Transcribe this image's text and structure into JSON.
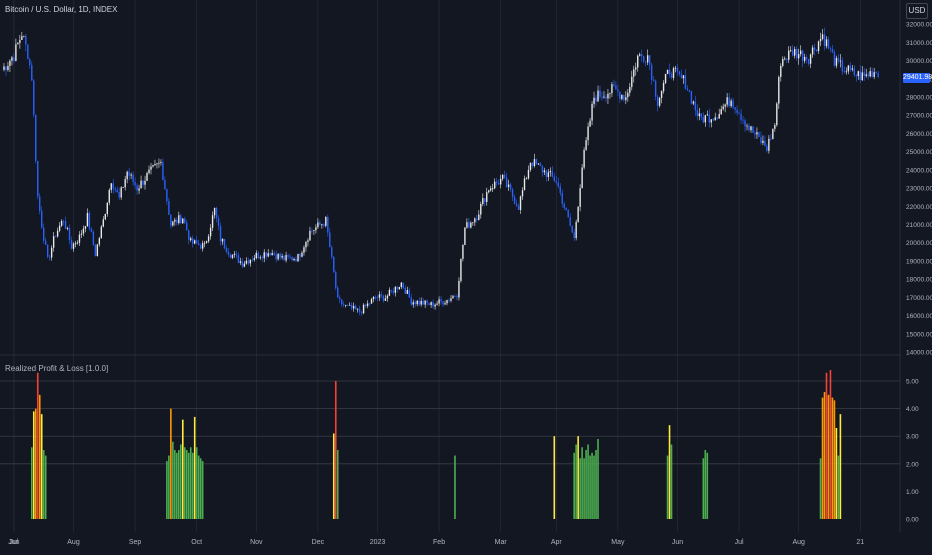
{
  "header": {
    "title": "Bitcoin / U.S. Dollar, 1D, INDEX",
    "currency": "USD",
    "last_price": "29401.98"
  },
  "indicator": {
    "title": "Realized Profit & Loss [1.0.0]"
  },
  "colors": {
    "background": "#131722",
    "candle_up": "#e8e8e8",
    "candle_down": "#2962ff",
    "grid": "#2a2e39",
    "hline": "#3a3e4a",
    "bar_green": "#4caf50",
    "bar_yellow": "#ffeb3b",
    "bar_orange": "#ff9800",
    "bar_red": "#f44336",
    "price_tag": "#2962ff"
  },
  "x_axis_labels": [
    "Jun",
    "Jul",
    "Aug",
    "Sep",
    "Oct",
    "Nov",
    "Dec",
    "2023",
    "Feb",
    "Mar",
    "Apr",
    "May",
    "Jun",
    "Jul",
    "Aug",
    "21"
  ],
  "price_axis_labels": [
    "32000.00",
    "31000.00",
    "30000.00",
    "29000.00",
    "28000.00",
    "27000.00",
    "26000.00",
    "25000.00",
    "24000.00",
    "23000.00",
    "22000.00",
    "21000.00",
    "20000.00",
    "19000.00",
    "18000.00",
    "17000.00",
    "16000.00",
    "15000.00",
    "14000.00"
  ],
  "indicator_axis_labels": [
    "5.00",
    "4.00",
    "3.00",
    "2.00",
    "1.00",
    "0.00"
  ],
  "chart_data": [
    {
      "type": "candlestick",
      "title": "Bitcoin / U.S. Dollar, 1D, INDEX",
      "ylim": [
        14000,
        32500
      ],
      "x_range": [
        "2022-05-25",
        "2023-08-21"
      ],
      "close_series": [
        [
          "2022-05-26",
          29500
        ],
        [
          "2022-06-01",
          30300
        ],
        [
          "2022-06-05",
          31500
        ],
        [
          "2022-06-08",
          30400
        ],
        [
          "2022-06-10",
          29100
        ],
        [
          "2022-06-13",
          22500
        ],
        [
          "2022-06-15",
          21000
        ],
        [
          "2022-06-18",
          19000
        ],
        [
          "2022-06-22",
          20500
        ],
        [
          "2022-06-26",
          21300
        ],
        [
          "2022-06-30",
          19800
        ],
        [
          "2022-07-04",
          20300
        ],
        [
          "2022-07-08",
          21400
        ],
        [
          "2022-07-12",
          19400
        ],
        [
          "2022-07-16",
          21200
        ],
        [
          "2022-07-20",
          23500
        ],
        [
          "2022-07-24",
          22400
        ],
        [
          "2022-07-28",
          23900
        ],
        [
          "2022-08-02",
          23000
        ],
        [
          "2022-08-08",
          23800
        ],
        [
          "2022-08-14",
          24400
        ],
        [
          "2022-08-19",
          21000
        ],
        [
          "2022-08-25",
          21400
        ],
        [
          "2022-08-29",
          20000
        ],
        [
          "2022-09-05",
          19800
        ],
        [
          "2022-09-10",
          21800
        ],
        [
          "2022-09-13",
          20200
        ],
        [
          "2022-09-18",
          19400
        ],
        [
          "2022-09-24",
          18900
        ],
        [
          "2022-10-01",
          19300
        ],
        [
          "2022-10-08",
          19500
        ],
        [
          "2022-10-15",
          19100
        ],
        [
          "2022-10-22",
          19200
        ],
        [
          "2022-10-28",
          20600
        ],
        [
          "2022-11-05",
          21200
        ],
        [
          "2022-11-09",
          18300
        ],
        [
          "2022-11-11",
          16800
        ],
        [
          "2022-11-15",
          16500
        ],
        [
          "2022-11-22",
          16200
        ],
        [
          "2022-11-30",
          17000
        ],
        [
          "2022-12-05",
          17000
        ],
        [
          "2022-12-13",
          17800
        ],
        [
          "2022-12-18",
          16800
        ],
        [
          "2022-12-28",
          16600
        ],
        [
          "2023-01-05",
          16850
        ],
        [
          "2023-01-10",
          17200
        ],
        [
          "2023-01-14",
          20800
        ],
        [
          "2023-01-20",
          21500
        ],
        [
          "2023-01-26",
          23000
        ],
        [
          "2023-02-02",
          23500
        ],
        [
          "2023-02-10",
          22000
        ],
        [
          "2023-02-16",
          24500
        ],
        [
          "2023-02-22",
          24000
        ],
        [
          "2023-03-01",
          23400
        ],
        [
          "2023-03-10",
          20200
        ],
        [
          "2023-03-14",
          24200
        ],
        [
          "2023-03-20",
          28000
        ],
        [
          "2023-03-30",
          28400
        ],
        [
          "2023-04-05",
          28000
        ],
        [
          "2023-04-11",
          30200
        ],
        [
          "2023-04-16",
          30300
        ],
        [
          "2023-04-21",
          27800
        ],
        [
          "2023-04-27",
          29500
        ],
        [
          "2023-05-05",
          28800
        ],
        [
          "2023-05-12",
          26800
        ],
        [
          "2023-05-20",
          27000
        ],
        [
          "2023-05-28",
          27900
        ],
        [
          "2023-06-06",
          26300
        ],
        [
          "2023-06-15",
          25200
        ],
        [
          "2023-06-19",
          26500
        ],
        [
          "2023-06-22",
          30000
        ],
        [
          "2023-06-28",
          30500
        ],
        [
          "2023-07-06",
          30200
        ],
        [
          "2023-07-13",
          31400
        ],
        [
          "2023-07-20",
          29800
        ],
        [
          "2023-07-28",
          29300
        ],
        [
          "2023-08-03",
          29100
        ],
        [
          "2023-08-07",
          29400
        ],
        [
          "2023-08-10",
          29400
        ]
      ]
    },
    {
      "type": "bar",
      "title": "Realized Profit & Loss [1.0.0]",
      "ylim": [
        0,
        5.4
      ],
      "x": [
        "2022-06-10",
        "2022-06-11",
        "2022-06-12",
        "2022-06-13",
        "2022-06-14",
        "2022-06-15",
        "2022-06-16",
        "2022-06-17",
        "2022-08-17",
        "2022-08-18",
        "2022-08-19",
        "2022-08-20",
        "2022-08-21",
        "2022-08-22",
        "2022-08-23",
        "2022-08-24",
        "2022-08-25",
        "2022-08-26",
        "2022-08-27",
        "2022-08-28",
        "2022-08-29",
        "2022-08-30",
        "2022-08-31",
        "2022-09-01",
        "2022-09-02",
        "2022-09-03",
        "2022-09-04",
        "2022-11-09",
        "2022-11-10",
        "2022-11-11",
        "2023-01-09",
        "2023-02-28",
        "2023-03-10",
        "2023-03-11",
        "2023-03-12",
        "2023-03-13",
        "2023-03-14",
        "2023-03-15",
        "2023-03-16",
        "2023-03-17",
        "2023-03-18",
        "2023-03-19",
        "2023-03-20",
        "2023-03-21",
        "2023-03-22",
        "2023-04-26",
        "2023-04-27",
        "2023-04-28",
        "2023-05-14",
        "2023-05-15",
        "2023-05-16",
        "2023-07-12",
        "2023-07-13",
        "2023-07-14",
        "2023-07-15",
        "2023-07-16",
        "2023-07-17",
        "2023-07-18",
        "2023-07-19",
        "2023-07-20",
        "2023-07-21",
        "2023-07-22"
      ],
      "values": [
        2.6,
        3.9,
        4.0,
        5.3,
        4.5,
        3.8,
        2.5,
        2.3,
        2.1,
        2.3,
        4.0,
        2.8,
        2.5,
        2.4,
        2.5,
        2.7,
        3.6,
        2.6,
        2.5,
        2.4,
        2.6,
        2.4,
        3.7,
        2.6,
        2.3,
        2.2,
        2.1,
        3.1,
        5.0,
        2.5,
        2.3,
        3.0,
        2.4,
        2.7,
        3.0,
        2.2,
        2.6,
        2.2,
        2.5,
        2.7,
        2.3,
        2.4,
        2.3,
        2.5,
        2.9,
        2.3,
        3.4,
        2.7,
        2.2,
        2.5,
        2.4,
        2.2,
        4.4,
        4.6,
        5.3,
        4.5,
        5.4,
        4.4,
        4.3,
        3.3,
        2.3,
        3.8
      ],
      "hlines": [
        2.0,
        3.0,
        4.0,
        5.0
      ]
    }
  ]
}
